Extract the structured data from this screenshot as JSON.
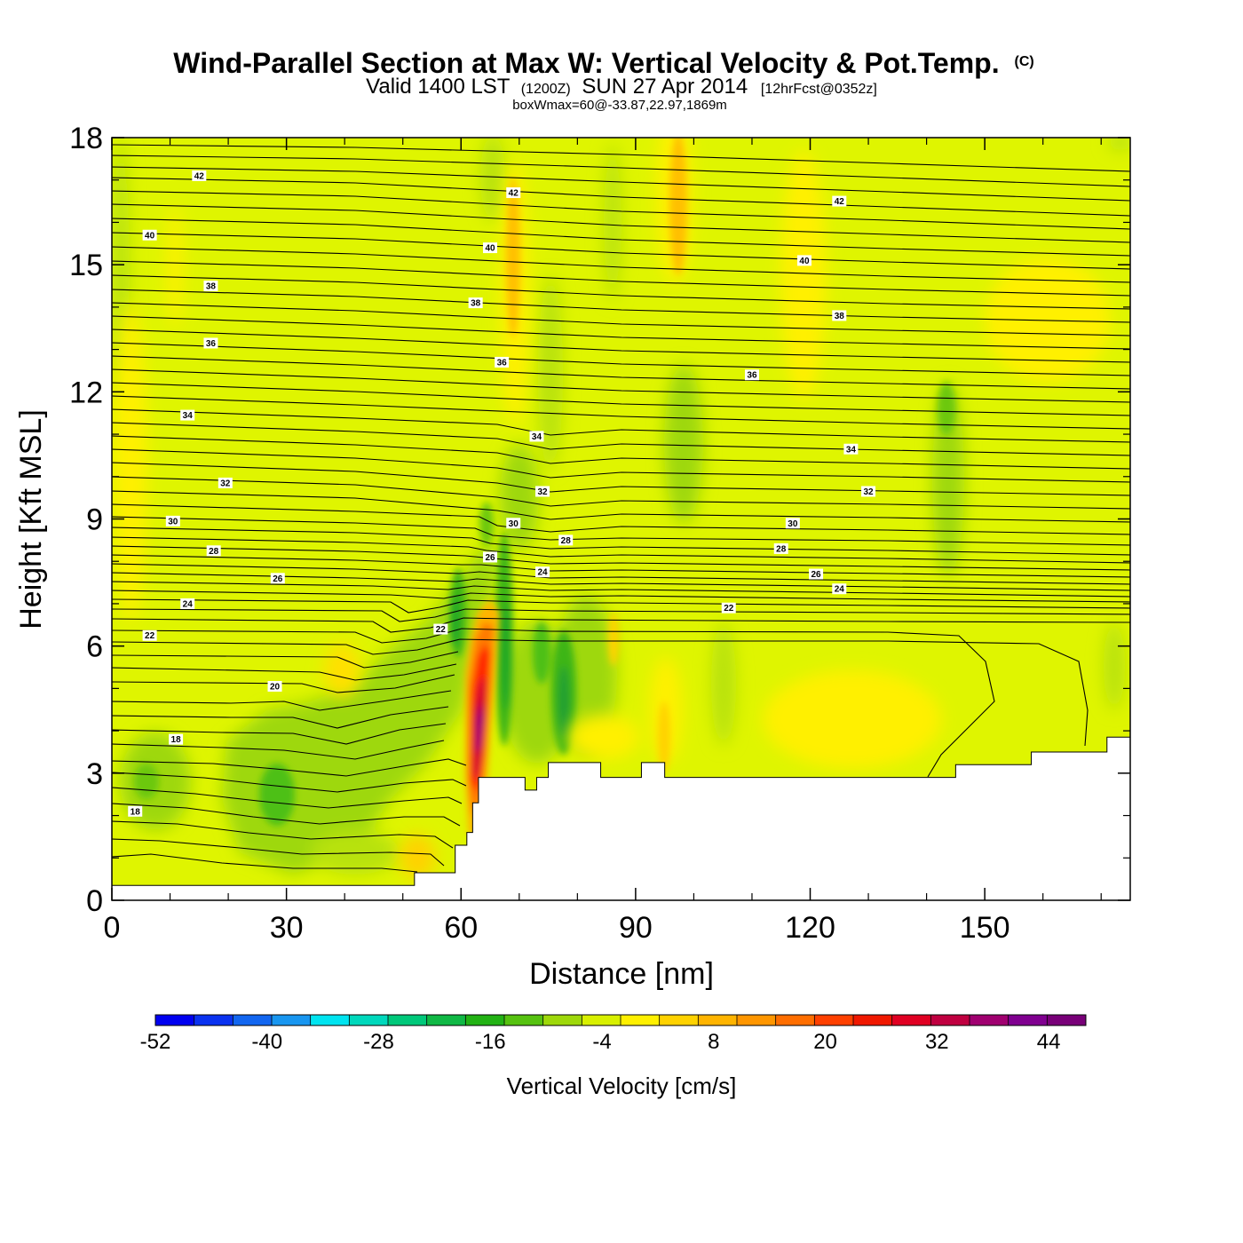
{
  "chart_data": {
    "type": "heatmap",
    "title": {
      "main": "Wind-Parallel Section at Max W: Vertical Velocity & Pot.Temp.",
      "copyright": "(C)",
      "valid_prefix": "Valid 1400 LST",
      "valid_utc": "(1200Z)",
      "valid_date": "SUN 27 Apr 2014",
      "forecast": "[12hrFcst@0352z]",
      "box_info": "boxWmax=60@-33.87,22.97,1869m"
    },
    "xlabel": "Distance [nm]",
    "ylabel": "Height [Kft MSL]",
    "xlim": [
      0,
      175
    ],
    "ylim": [
      0,
      18
    ],
    "xticks": [
      0,
      30,
      60,
      90,
      120,
      150
    ],
    "yticks": [
      0,
      3,
      6,
      9,
      12,
      15,
      18
    ],
    "colorbar": {
      "label": "Vertical Velocity [cm/s]",
      "min": -52,
      "max": 48,
      "step": 4,
      "tick_labels": [
        -52,
        -40,
        -28,
        -16,
        -4,
        8,
        20,
        32,
        44
      ],
      "colors": [
        "#0000f0",
        "#0a32f0",
        "#1266f0",
        "#1896f0",
        "#00e4f0",
        "#00d8bc",
        "#00c87a",
        "#10b845",
        "#22b214",
        "#56c210",
        "#9ed80a",
        "#d8f000",
        "#fff000",
        "#ffd200",
        "#ffb400",
        "#ff9600",
        "#ff6e00",
        "#ff4000",
        "#f01800",
        "#e00022",
        "#c00040",
        "#a00070",
        "#800090",
        "#780078"
      ]
    },
    "terrain": [
      [
        0,
        0.35
      ],
      [
        52,
        0.35
      ],
      [
        52,
        0.65
      ],
      [
        59,
        0.65
      ],
      [
        59,
        1.3
      ],
      [
        61,
        1.3
      ],
      [
        61,
        1.6
      ],
      [
        62,
        1.6
      ],
      [
        62,
        2.3
      ],
      [
        63,
        2.3
      ],
      [
        63,
        2.9
      ],
      [
        71,
        2.9
      ],
      [
        71,
        2.6
      ],
      [
        73,
        2.6
      ],
      [
        73,
        2.9
      ],
      [
        75,
        2.9
      ],
      [
        75,
        3.25
      ],
      [
        84,
        3.25
      ],
      [
        84,
        2.9
      ],
      [
        91,
        2.9
      ],
      [
        91,
        3.25
      ],
      [
        95,
        3.25
      ],
      [
        95,
        2.9
      ],
      [
        145,
        2.9
      ],
      [
        145,
        3.2
      ],
      [
        158,
        3.2
      ],
      [
        158,
        3.5
      ],
      [
        171,
        3.5
      ],
      [
        171,
        3.85
      ],
      [
        175,
        3.85
      ]
    ],
    "contour_labels": [
      {
        "text": "42",
        "x": 15,
        "y": 17.1
      },
      {
        "text": "42",
        "x": 69,
        "y": 16.7
      },
      {
        "text": "42",
        "x": 125,
        "y": 16.5
      },
      {
        "text": "40",
        "x": 6.5,
        "y": 15.7
      },
      {
        "text": "40",
        "x": 65,
        "y": 15.4
      },
      {
        "text": "40",
        "x": 119,
        "y": 15.1
      },
      {
        "text": "38",
        "x": 17,
        "y": 14.5
      },
      {
        "text": "38",
        "x": 62.5,
        "y": 14.1
      },
      {
        "text": "38",
        "x": 125,
        "y": 13.8
      },
      {
        "text": "36",
        "x": 17,
        "y": 13.15
      },
      {
        "text": "36",
        "x": 67,
        "y": 12.7
      },
      {
        "text": "36",
        "x": 110,
        "y": 12.4
      },
      {
        "text": "34",
        "x": 13,
        "y": 11.45
      },
      {
        "text": "34",
        "x": 73,
        "y": 10.95
      },
      {
        "text": "34",
        "x": 127,
        "y": 10.65
      },
      {
        "text": "32",
        "x": 19.5,
        "y": 9.85
      },
      {
        "text": "32",
        "x": 74,
        "y": 9.65
      },
      {
        "text": "32",
        "x": 130,
        "y": 9.65
      },
      {
        "text": "30",
        "x": 10.5,
        "y": 8.95
      },
      {
        "text": "30",
        "x": 69,
        "y": 8.9
      },
      {
        "text": "30",
        "x": 117,
        "y": 8.9
      },
      {
        "text": "28",
        "x": 17.5,
        "y": 8.25
      },
      {
        "text": "28",
        "x": 78,
        "y": 8.5
      },
      {
        "text": "28",
        "x": 115,
        "y": 8.3
      },
      {
        "text": "26",
        "x": 28.5,
        "y": 7.6
      },
      {
        "text": "26",
        "x": 65,
        "y": 8.1
      },
      {
        "text": "26",
        "x": 121,
        "y": 7.7
      },
      {
        "text": "24",
        "x": 13,
        "y": 7.0
      },
      {
        "text": "24",
        "x": 74,
        "y": 7.75
      },
      {
        "text": "24",
        "x": 125,
        "y": 7.35
      },
      {
        "text": "22",
        "x": 6.5,
        "y": 6.25
      },
      {
        "text": "22",
        "x": 56.5,
        "y": 6.4
      },
      {
        "text": "22",
        "x": 106,
        "y": 6.9
      },
      {
        "text": "20",
        "x": 28,
        "y": 5.05
      },
      {
        "text": "18",
        "x": 11,
        "y": 3.8
      },
      {
        "text": "18",
        "x": 4,
        "y": 2.1
      }
    ]
  }
}
